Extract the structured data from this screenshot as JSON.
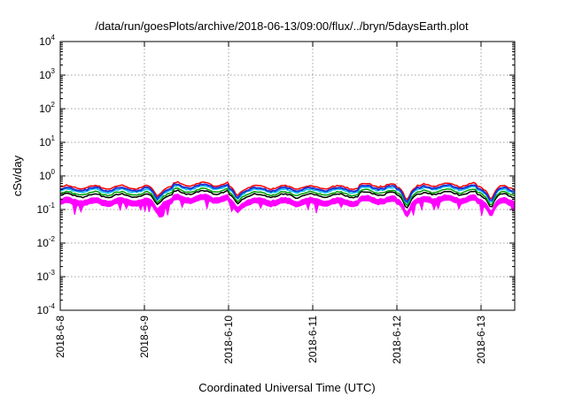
{
  "chart_data": {
    "type": "line",
    "title": "/data/run/goesPlots/archive/2018-06-13/09:00/flux/../bryn/5daysEarth.plot",
    "xlabel": "Coordinated Universal Time (UTC)",
    "ylabel": "cSv/day",
    "yscale": "log",
    "ylim_exp": [
      -4,
      4
    ],
    "ytick_labels": [
      {
        "base": "10",
        "exp": "-4"
      },
      {
        "base": "10",
        "exp": "-3"
      },
      {
        "base": "10",
        "exp": "-2"
      },
      {
        "base": "10",
        "exp": "-1"
      },
      {
        "base": "10",
        "exp": "0"
      },
      {
        "base": "10",
        "exp": "1"
      },
      {
        "base": "10",
        "exp": "2"
      },
      {
        "base": "10",
        "exp": "3"
      },
      {
        "base": "10",
        "exp": "4"
      }
    ],
    "xlim_days": [
      0,
      5.4
    ],
    "xtick_labels": [
      "2018-6-8",
      "2018-6-9",
      "2018-6-10",
      "2018-6-11",
      "2018-6-12",
      "2018-6-13"
    ],
    "grid": true,
    "series": [
      {
        "color": "#ff00ff",
        "fill": true,
        "base": 0.2
      },
      {
        "color": "#000000",
        "fill": false,
        "base": 0.26
      },
      {
        "color": "#00a000",
        "fill": false,
        "base": 0.3
      },
      {
        "color": "#00c0ff",
        "fill": false,
        "base": 0.36
      },
      {
        "color": "#ff0000",
        "fill": false,
        "base": 0.46
      },
      {
        "color": "#1f2fd0",
        "fill": false,
        "base": 0.4
      }
    ],
    "dips": [
      {
        "day": 1.15,
        "factor": 0.58
      },
      {
        "day": 2.1,
        "factor": 0.6
      },
      {
        "day": 4.12,
        "factor": 0.5
      },
      {
        "day": 5.12,
        "factor": 0.5
      }
    ],
    "highs": [
      {
        "from": 1.35,
        "to": 2.0,
        "factor": 1.25
      },
      {
        "from": 3.55,
        "to": 4.0,
        "factor": 1.15
      },
      {
        "from": 4.3,
        "to": 4.95,
        "factor": 1.2
      }
    ]
  }
}
